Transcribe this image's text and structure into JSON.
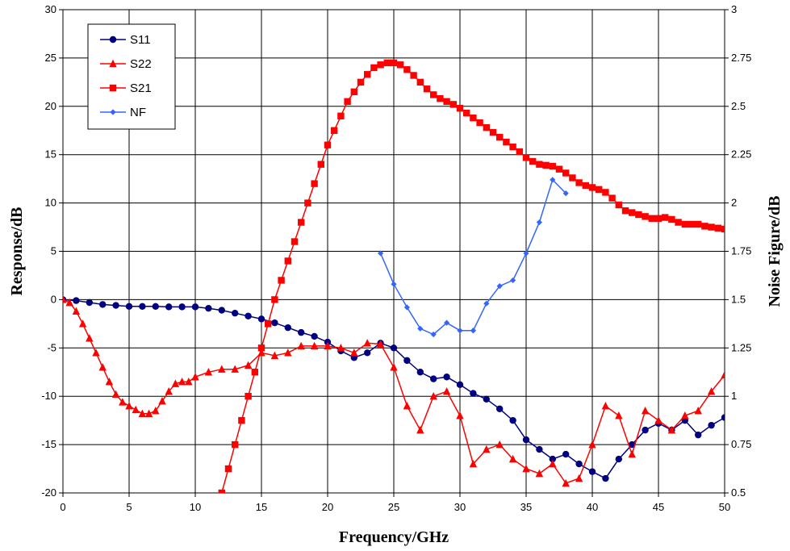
{
  "chart_data": {
    "type": "line",
    "title": "",
    "xlabel": "Frequency/GHz",
    "ylabel": "Response/dB",
    "y2label": "Noise Figure/dB",
    "xlim": [
      0,
      50
    ],
    "ylim": [
      -20,
      30
    ],
    "y2lim": [
      0.5,
      3
    ],
    "x_ticks": [
      "0",
      "5",
      "10",
      "15",
      "20",
      "25",
      "30",
      "35",
      "40",
      "45",
      "50"
    ],
    "y_ticks": [
      "-20",
      "-15",
      "-10",
      "-5",
      "0",
      "5",
      "10",
      "15",
      "20",
      "25",
      "30"
    ],
    "y2_ticks": [
      "0.5",
      "0.75",
      "1",
      "1.25",
      "1.5",
      "1.75",
      "2",
      "2.25",
      "2.5",
      "2.75",
      "3"
    ],
    "grid": true,
    "legend_position": "top-left",
    "series": [
      {
        "name": "S11",
        "axis": "left",
        "color": "#000080",
        "marker": "circle",
        "marker_every": 1,
        "x": [
          0,
          1,
          2,
          3,
          4,
          5,
          6,
          7,
          8,
          9,
          10,
          11,
          12,
          13,
          14,
          15,
          16,
          17,
          18,
          19,
          20,
          21,
          22,
          23,
          24,
          25,
          26,
          27,
          28,
          29,
          30,
          31,
          32,
          33,
          34,
          35,
          36,
          37,
          38,
          39,
          40,
          41,
          42,
          43,
          44,
          45,
          46,
          47,
          48,
          49,
          50
        ],
        "y": [
          0,
          -0.1,
          -0.3,
          -0.5,
          -0.6,
          -0.7,
          -0.7,
          -0.7,
          -0.75,
          -0.75,
          -0.75,
          -0.9,
          -1.1,
          -1.4,
          -1.7,
          -2.0,
          -2.4,
          -2.9,
          -3.4,
          -3.8,
          -4.4,
          -5.3,
          -6.0,
          -5.5,
          -4.5,
          -5.0,
          -6.3,
          -7.5,
          -8.2,
          -8.0,
          -8.8,
          -9.7,
          -10.3,
          -11.3,
          -12.5,
          -14.5,
          -15.5,
          -16.5,
          -16.0,
          -17.0,
          -17.8,
          -18.5,
          -16.5,
          -15.0,
          -13.5,
          -12.8,
          -13.5,
          -12.5,
          -14.0,
          -13.0,
          -12.2
        ]
      },
      {
        "name": "S22",
        "axis": "left",
        "color": "#ff0000",
        "marker": "triangle",
        "marker_every": 1,
        "x": [
          0,
          0.5,
          1,
          1.5,
          2,
          2.5,
          3,
          3.5,
          4,
          4.5,
          5,
          5.5,
          6,
          6.5,
          7,
          7.5,
          8,
          8.5,
          9,
          9.5,
          10,
          11,
          12,
          13,
          14,
          15,
          16,
          17,
          18,
          19,
          20,
          21,
          22,
          23,
          24,
          25,
          26,
          27,
          28,
          29,
          30,
          31,
          32,
          33,
          34,
          35,
          36,
          37,
          38,
          39,
          40,
          41,
          42,
          43,
          44,
          45,
          46,
          47,
          48,
          49,
          50
        ],
        "y": [
          0,
          -0.3,
          -1.2,
          -2.5,
          -4.0,
          -5.5,
          -7.0,
          -8.5,
          -9.8,
          -10.6,
          -11.0,
          -11.4,
          -11.8,
          -11.8,
          -11.5,
          -10.5,
          -9.5,
          -8.7,
          -8.5,
          -8.5,
          -8.0,
          -7.5,
          -7.2,
          -7.2,
          -6.8,
          -5.5,
          -5.8,
          -5.5,
          -4.8,
          -4.8,
          -4.8,
          -5.0,
          -5.5,
          -4.5,
          -4.6,
          -7.0,
          -11.0,
          -13.5,
          -10.0,
          -9.5,
          -12.0,
          -17.0,
          -15.5,
          -15.0,
          -16.5,
          -17.5,
          -18.0,
          -17.0,
          -19.0,
          -18.5,
          -15.0,
          -11.0,
          -12.0,
          -16.0,
          -11.5,
          -12.5,
          -13.5,
          -12.0,
          -11.5,
          -9.5,
          -7.8
        ]
      },
      {
        "name": "S21",
        "axis": "left",
        "color": "#ff0000",
        "marker": "square",
        "marker_every": 1,
        "x": [
          12,
          12.5,
          13,
          13.5,
          14,
          14.5,
          15,
          15.5,
          16,
          16.5,
          17,
          17.5,
          18,
          18.5,
          19,
          19.5,
          20,
          20.5,
          21,
          21.5,
          22,
          22.5,
          23,
          23.5,
          24,
          24.5,
          25,
          25.5,
          26,
          26.5,
          27,
          27.5,
          28,
          28.5,
          29,
          29.5,
          30,
          30.5,
          31,
          31.5,
          32,
          32.5,
          33,
          33.5,
          34,
          34.5,
          35,
          35.5,
          36,
          36.5,
          37,
          37.5,
          38,
          38.5,
          39,
          39.5,
          40,
          40.5,
          41,
          41.5,
          42,
          42.5,
          43,
          43.5,
          44,
          44.5,
          45,
          45.5,
          46,
          46.5,
          47,
          47.5,
          48,
          48.5,
          49,
          49.5,
          50
        ],
        "y": [
          -20,
          -17.5,
          -15.0,
          -12.5,
          -10.0,
          -7.5,
          -5.0,
          -2.5,
          0.0,
          2.0,
          4.0,
          6.0,
          8.0,
          10.0,
          12.0,
          14.0,
          16.0,
          17.5,
          19.0,
          20.5,
          21.5,
          22.5,
          23.3,
          24.0,
          24.3,
          24.5,
          24.5,
          24.3,
          23.8,
          23.2,
          22.5,
          21.8,
          21.2,
          20.8,
          20.5,
          20.2,
          19.8,
          19.3,
          18.8,
          18.3,
          17.8,
          17.3,
          16.8,
          16.3,
          15.8,
          15.3,
          14.7,
          14.3,
          14.0,
          13.9,
          13.8,
          13.5,
          13.1,
          12.6,
          12.1,
          11.8,
          11.6,
          11.4,
          11.1,
          10.5,
          9.8,
          9.2,
          9.0,
          8.8,
          8.6,
          8.4,
          8.4,
          8.5,
          8.3,
          8.0,
          7.8,
          7.8,
          7.8,
          7.6,
          7.5,
          7.4,
          7.3
        ]
      },
      {
        "name": "NF",
        "axis": "right",
        "color": "#3366ff",
        "marker": "diamond",
        "marker_every": 1,
        "x": [
          24,
          25,
          26,
          27,
          28,
          29,
          30,
          31,
          32,
          33,
          34,
          35,
          36,
          37,
          38
        ],
        "y": [
          1.74,
          1.58,
          1.46,
          1.35,
          1.32,
          1.38,
          1.34,
          1.34,
          1.48,
          1.57,
          1.6,
          1.74,
          1.9,
          2.12,
          2.05
        ]
      }
    ]
  }
}
